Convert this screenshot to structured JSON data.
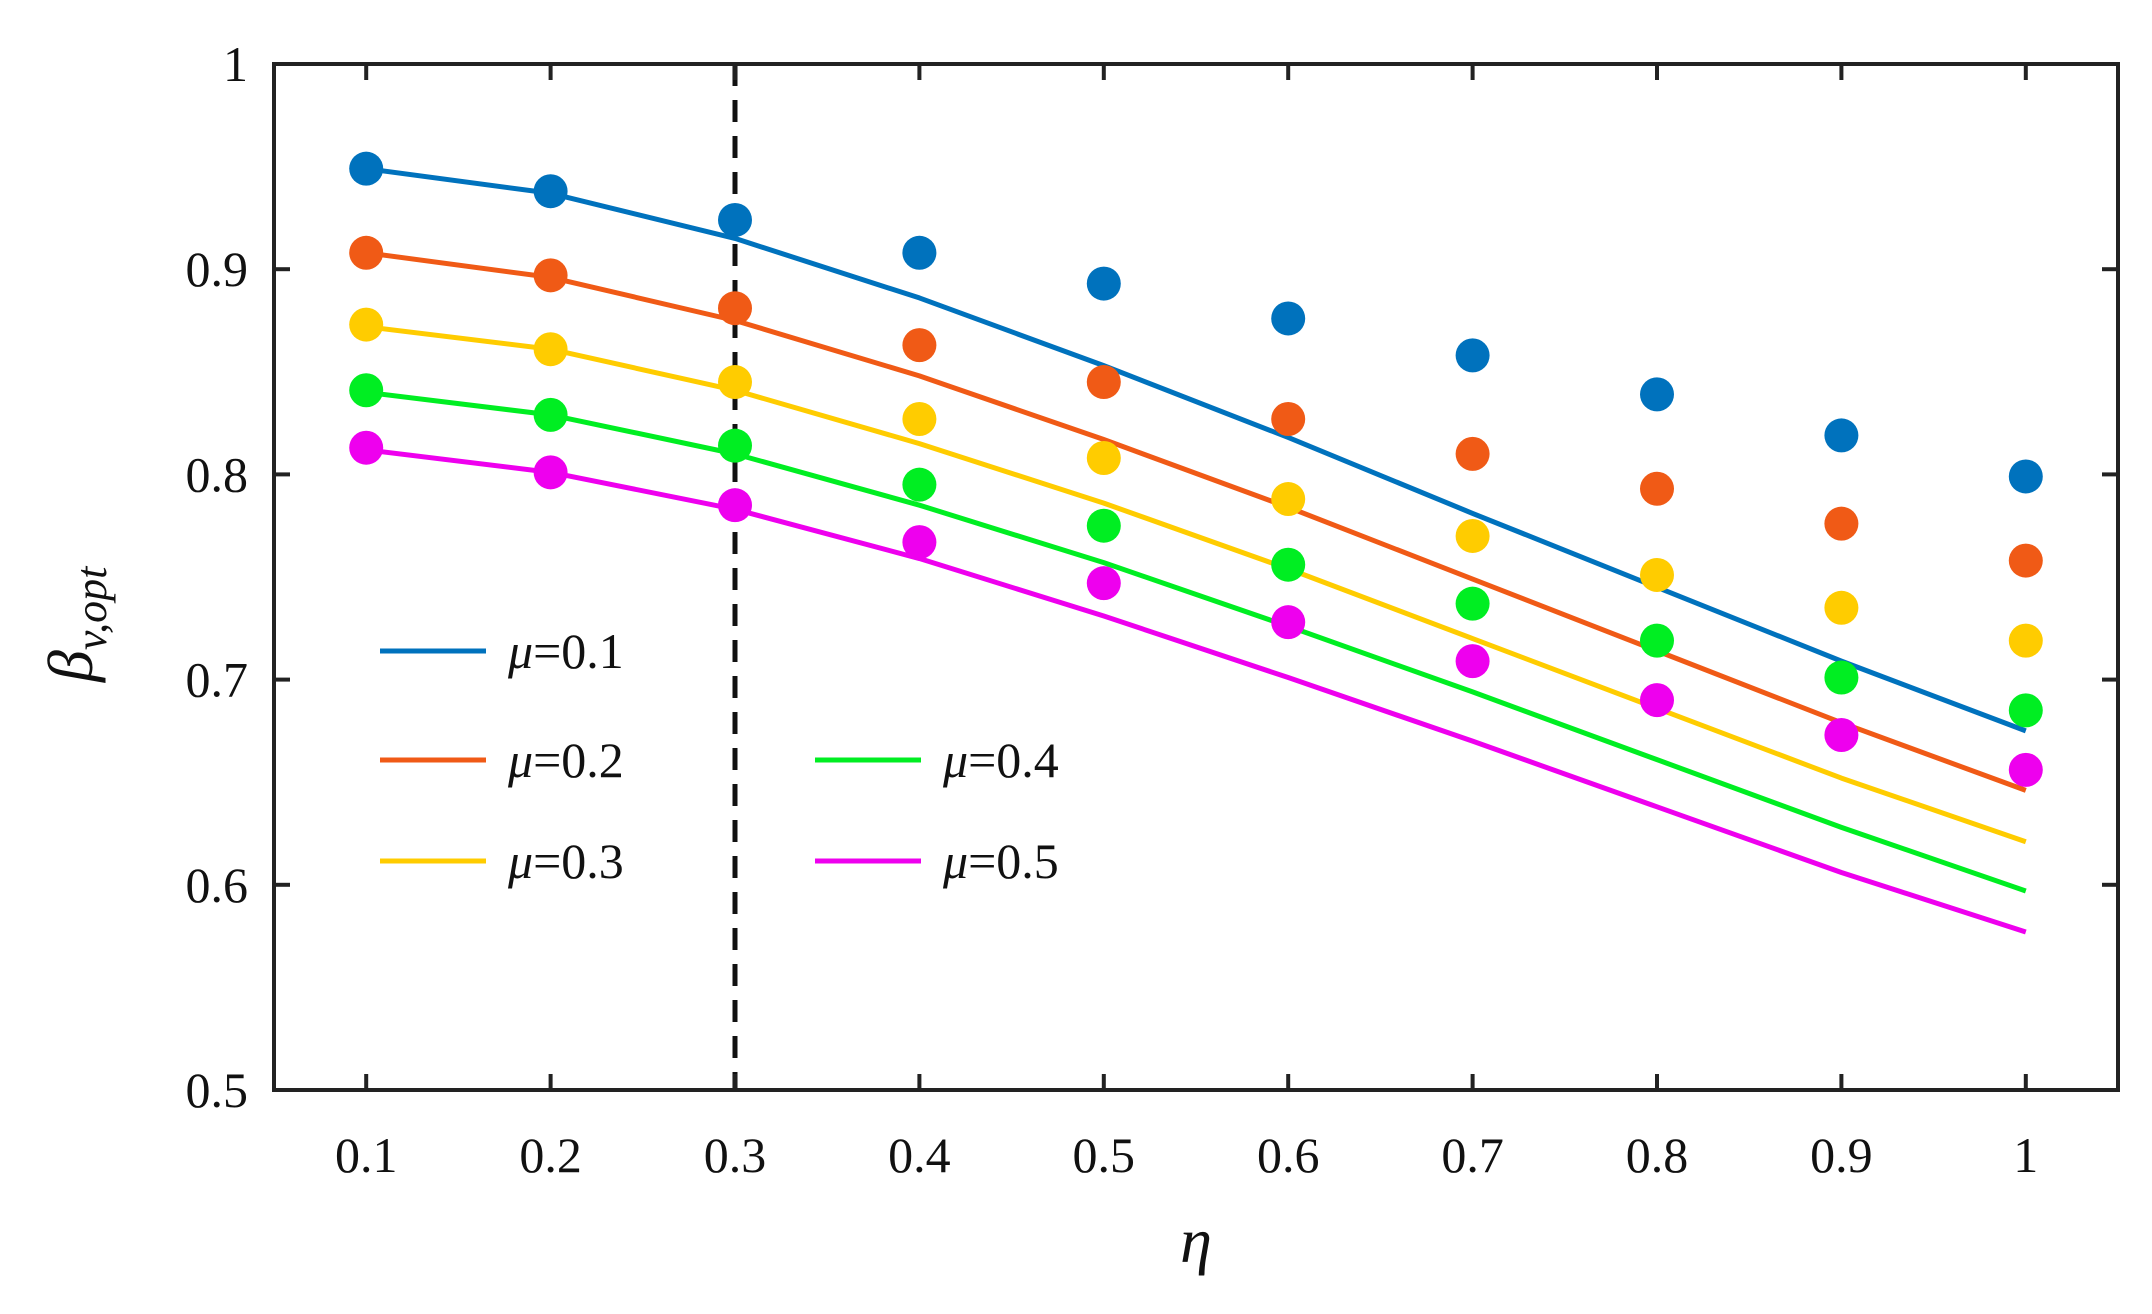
{
  "chart_data": {
    "type": "line",
    "title": "",
    "xlabel": "η",
    "ylabel_main": "β",
    "ylabel_sub": "v,opt",
    "xlim": [
      0.05,
      1.05
    ],
    "ylim": [
      0.5,
      1.0
    ],
    "x": [
      0.1,
      0.2,
      0.3,
      0.4,
      0.5,
      0.6,
      0.7,
      0.8,
      0.9,
      1.0
    ],
    "x_tick_labels": [
      "0.1",
      "0.2",
      "0.3",
      "0.4",
      "0.5",
      "0.6",
      "0.7",
      "0.8",
      "0.9",
      "1"
    ],
    "y_ticks": [
      0.5,
      0.6,
      0.7,
      0.8,
      0.9,
      1.0
    ],
    "y_tick_labels": [
      "0.5",
      "0.6",
      "0.7",
      "0.8",
      "0.9",
      "1"
    ],
    "reference_line_x": 0.3,
    "legend_prefix": "μ",
    "series": [
      {
        "name": "=0.1",
        "color": "#0072BD",
        "line": [
          0.949,
          0.937,
          0.915,
          0.886,
          0.853,
          0.818,
          0.781,
          0.745,
          0.709,
          0.675
        ],
        "points": [
          0.949,
          0.938,
          0.924,
          0.908,
          0.893,
          0.876,
          0.858,
          0.839,
          0.819,
          0.799
        ]
      },
      {
        "name": "=0.2",
        "color": "#F05A16",
        "line": [
          0.908,
          0.896,
          0.875,
          0.848,
          0.817,
          0.784,
          0.749,
          0.714,
          0.679,
          0.646
        ],
        "points": [
          0.908,
          0.897,
          0.881,
          0.863,
          0.845,
          0.827,
          0.81,
          0.793,
          0.776,
          0.758
        ]
      },
      {
        "name": "=0.3",
        "color": "#FFCC00",
        "line": [
          0.872,
          0.861,
          0.841,
          0.815,
          0.786,
          0.754,
          0.72,
          0.686,
          0.652,
          0.621
        ],
        "points": [
          0.873,
          0.861,
          0.845,
          0.827,
          0.808,
          0.788,
          0.77,
          0.751,
          0.735,
          0.719
        ]
      },
      {
        "name": "=0.4",
        "color": "#00EE22",
        "line": [
          0.84,
          0.829,
          0.81,
          0.785,
          0.757,
          0.726,
          0.694,
          0.661,
          0.628,
          0.597
        ],
        "points": [
          0.841,
          0.829,
          0.814,
          0.795,
          0.775,
          0.756,
          0.737,
          0.719,
          0.701,
          0.685
        ]
      },
      {
        "name": "=0.5",
        "color": "#EE00EE",
        "line": [
          0.812,
          0.801,
          0.783,
          0.759,
          0.731,
          0.701,
          0.67,
          0.638,
          0.606,
          0.577
        ],
        "points": [
          0.813,
          0.801,
          0.785,
          0.767,
          0.747,
          0.728,
          0.709,
          0.69,
          0.673,
          0.656
        ]
      }
    ]
  }
}
